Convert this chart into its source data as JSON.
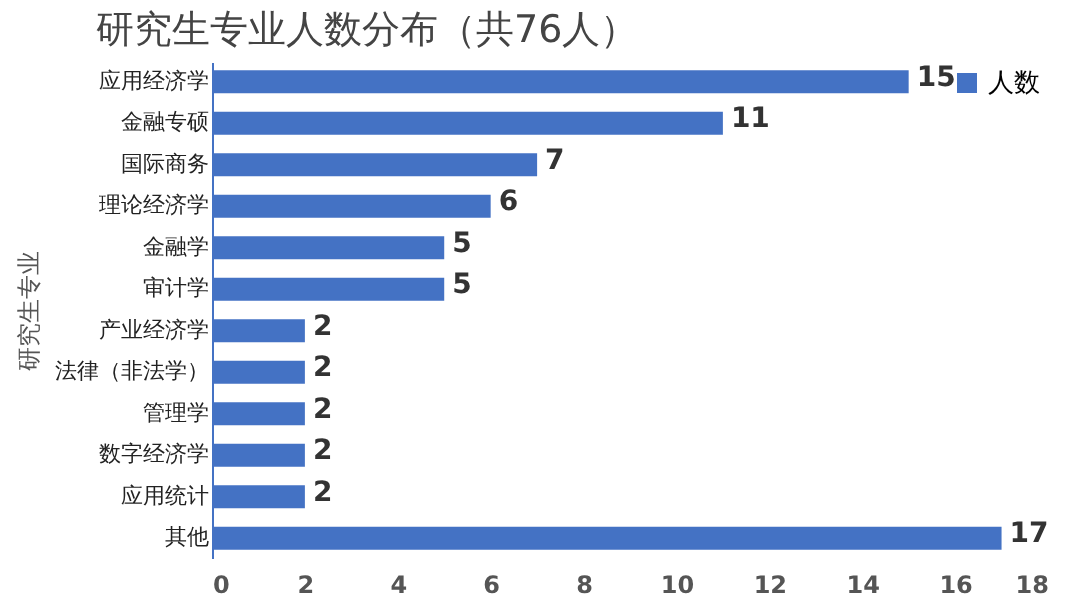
{
  "chart_data": {
    "type": "bar",
    "orientation": "horizontal",
    "title": "研究生专业人数分布（共76人）",
    "ylabel": "研究生专业",
    "categories": [
      "应用经济学",
      "金融专硕",
      "国际商务",
      "理论经济学",
      "金融学",
      "审计学",
      "产业经济学",
      "法律（非法学）",
      "管理学",
      "数字经济学",
      "应用统计",
      "其他"
    ],
    "series": [
      {
        "name": "人数",
        "color": "#4472c4",
        "values": [
          15,
          11,
          7,
          6,
          5,
          5,
          2,
          2,
          2,
          2,
          2,
          17
        ]
      }
    ],
    "xlim": [
      0,
      18
    ],
    "xticks": [
      0,
      2,
      4,
      6,
      8,
      10,
      12,
      14,
      16,
      18
    ],
    "grid": false,
    "legend": "top right",
    "data_labels": true
  }
}
